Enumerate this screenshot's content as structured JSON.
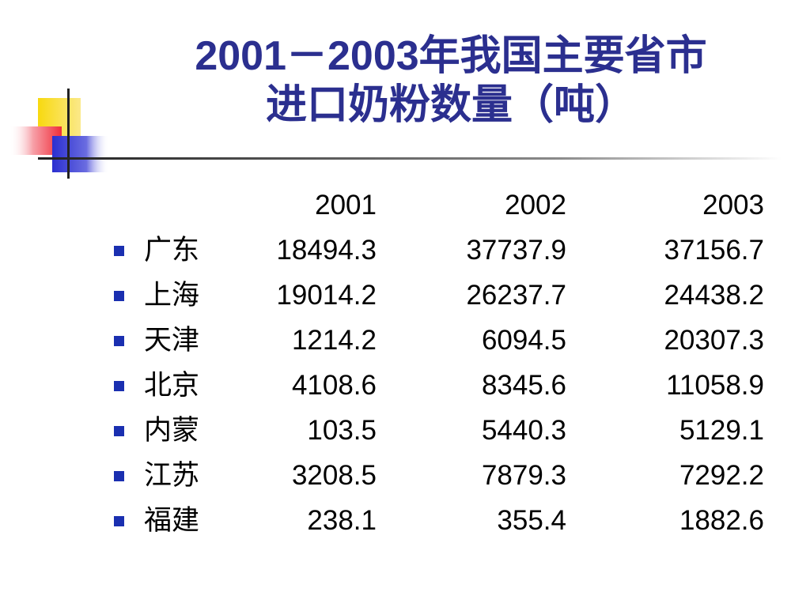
{
  "title": {
    "line1": "2001－2003年我国主要省市",
    "line2": "进口奶粉数量（吨）"
  },
  "colors": {
    "title": "#2b2f8f",
    "bullet": "#1a2fb0",
    "deco_yellow": "#f8d90f",
    "deco_red": "#ef2d3a",
    "deco_blue": "#2b2fd0"
  },
  "table": {
    "header": [
      "2001",
      "2002",
      "2003"
    ],
    "rows": [
      {
        "region": "广东",
        "v2001": "18494.3",
        "v2002": "37737.9",
        "v2003": "37156.7"
      },
      {
        "region": "上海",
        "v2001": "19014.2",
        "v2002": "26237.7",
        "v2003": "24438.2"
      },
      {
        "region": "天津",
        "v2001": "1214.2",
        "v2002": "6094.5",
        "v2003": "20307.3"
      },
      {
        "region": "北京",
        "v2001": "4108.6",
        "v2002": "8345.6",
        "v2003": "11058.9"
      },
      {
        "region": "内蒙",
        "v2001": "103.5",
        "v2002": "5440.3",
        "v2003": "5129.1"
      },
      {
        "region": "江苏",
        "v2001": "3208.5",
        "v2002": "7879.3",
        "v2003": "7292.2"
      },
      {
        "region": "福建",
        "v2001": "238.1",
        "v2002": "355.4",
        "v2003": "1882.6"
      }
    ]
  }
}
